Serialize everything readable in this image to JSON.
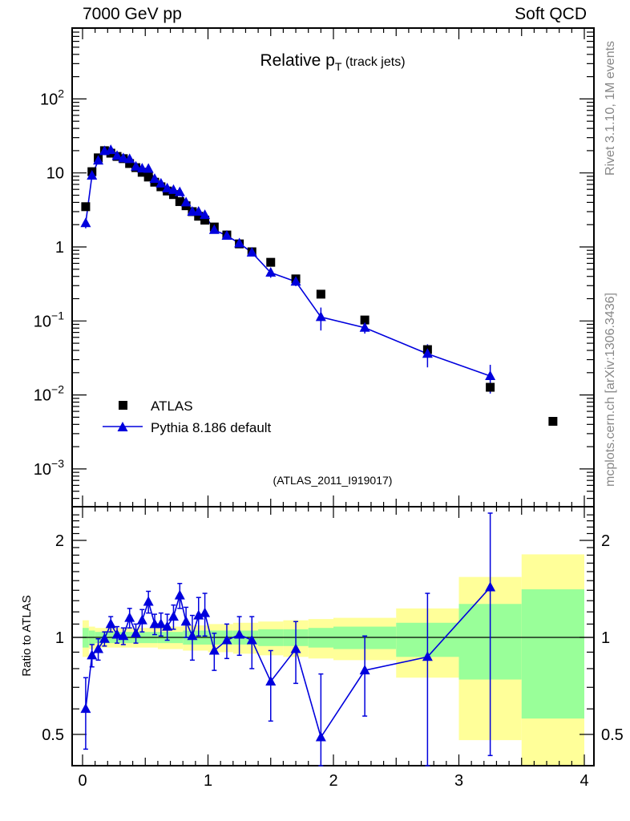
{
  "header": {
    "left": "7000 GeV pp",
    "right": "Soft QCD"
  },
  "side_text": {
    "top": "Rivet 3.1.10,  1M events",
    "bottom": "mcplots.cern.ch [arXiv:1306.3436]"
  },
  "analysis_label": "(ATLAS_2011_I919017)",
  "colors": {
    "data": "#000000",
    "mc": "#0000dd",
    "band_inner": "#99ff99",
    "band_outer": "#ffff99"
  },
  "chart_data": [
    {
      "type": "scatter",
      "title": "Relative p",
      "title_sub": "T",
      "title_suffix": " (track jets)",
      "xlabel": "",
      "ylabel": "",
      "yscale": "log",
      "xlim": [
        -0.083,
        4.077
      ],
      "ylim": [
        0.0003,
        900
      ],
      "yticks": [
        {
          "v": 0.001,
          "base": "10",
          "exp": "−3"
        },
        {
          "v": 0.01,
          "base": "10",
          "exp": "−2"
        },
        {
          "v": 0.1,
          "base": "10",
          "exp": "−1"
        },
        {
          "v": 1,
          "base": "1",
          "exp": ""
        },
        {
          "v": 10,
          "base": "10",
          "exp": ""
        },
        {
          "v": 100,
          "base": "10",
          "exp": "2"
        }
      ],
      "legend": {
        "placement": "bottom-left",
        "entries": [
          "ATLAS",
          "Pythia 8.186 default"
        ]
      },
      "x": [
        0.025,
        0.075,
        0.125,
        0.175,
        0.225,
        0.275,
        0.325,
        0.375,
        0.425,
        0.475,
        0.525,
        0.575,
        0.625,
        0.675,
        0.725,
        0.775,
        0.825,
        0.875,
        0.925,
        0.975,
        1.05,
        1.15,
        1.25,
        1.35,
        1.5,
        1.7,
        1.9,
        2.25,
        2.75,
        3.25,
        3.75
      ],
      "series": [
        {
          "name": "ATLAS",
          "values": [
            3.5,
            10.4,
            16,
            20,
            18.5,
            16.7,
            15.6,
            13.4,
            11.8,
            10.2,
            8.8,
            7.5,
            6.5,
            5.7,
            5.1,
            4.1,
            3.6,
            3.0,
            2.6,
            2.3,
            1.86,
            1.45,
            1.1,
            0.86,
            0.62,
            0.37,
            0.23,
            0.103,
            0.041,
            0.0127,
            0.0044
          ]
        },
        {
          "name": "Pythia 8.186 default",
          "values": [
            2.1,
            9.2,
            14.7,
            19.8,
            20.4,
            17.0,
            15.8,
            15.4,
            12.2,
            11.5,
            11.4,
            8.3,
            7.2,
            6.2,
            5.9,
            5.5,
            4.0,
            3.0,
            3.0,
            2.7,
            1.7,
            1.42,
            1.12,
            0.84,
            0.45,
            0.34,
            0.113,
            0.081,
            0.036,
            0.018,
            null
          ]
        }
      ]
    },
    {
      "type": "line",
      "ylabel": "Ratio to ATLAS",
      "yscale": "log",
      "ylim": [
        0.4,
        2.54
      ],
      "xticks": [
        "0",
        "1",
        "2",
        "3",
        "4"
      ],
      "yticks": [
        {
          "v": 0.5,
          "label": "0.5"
        },
        {
          "v": 1,
          "label": "1"
        },
        {
          "v": 2,
          "label": "2"
        }
      ],
      "x": [
        0.025,
        0.075,
        0.125,
        0.175,
        0.225,
        0.275,
        0.325,
        0.375,
        0.425,
        0.475,
        0.525,
        0.575,
        0.625,
        0.675,
        0.725,
        0.775,
        0.825,
        0.875,
        0.925,
        0.975,
        1.05,
        1.15,
        1.25,
        1.35,
        1.5,
        1.7,
        1.9,
        2.25,
        2.75,
        3.25
      ],
      "ratio": [
        0.6,
        0.88,
        0.92,
        0.99,
        1.1,
        1.02,
        1.01,
        1.15,
        1.03,
        1.13,
        1.29,
        1.1,
        1.1,
        1.08,
        1.16,
        1.35,
        1.12,
        1.01,
        1.17,
        1.19,
        0.91,
        0.98,
        1.02,
        0.98,
        0.73,
        0.92,
        0.49,
        0.79,
        0.87,
        1.43
      ],
      "ratio_err": [
        0.15,
        0.07,
        0.07,
        0.05,
        0.06,
        0.06,
        0.06,
        0.08,
        0.07,
        0.09,
        0.1,
        0.08,
        0.09,
        0.1,
        0.1,
        0.12,
        0.12,
        0.16,
        0.16,
        0.18,
        0.12,
        0.12,
        0.14,
        0.18,
        0.18,
        0.2,
        0.28,
        0.22,
        0.5,
        1.0
      ],
      "bands": {
        "edges": [
          0,
          0.05,
          0.1,
          0.2,
          0.4,
          0.6,
          0.8,
          1.0,
          1.2,
          1.4,
          1.6,
          1.8,
          2.0,
          2.5,
          3.0,
          3.5,
          4.0
        ],
        "inner_lo": [
          0.93,
          0.95,
          0.96,
          0.96,
          0.96,
          0.96,
          0.95,
          0.95,
          0.95,
          0.94,
          0.94,
          0.93,
          0.92,
          0.87,
          0.74,
          0.56
        ],
        "inner_hi": [
          1.07,
          1.05,
          1.04,
          1.04,
          1.04,
          1.04,
          1.05,
          1.05,
          1.05,
          1.06,
          1.06,
          1.07,
          1.08,
          1.11,
          1.27,
          1.41
        ],
        "outer_lo": [
          0.87,
          0.92,
          0.93,
          0.93,
          0.93,
          0.92,
          0.91,
          0.9,
          0.89,
          0.88,
          0.87,
          0.86,
          0.85,
          0.75,
          0.48,
          0.35
        ],
        "outer_hi": [
          1.13,
          1.08,
          1.07,
          1.07,
          1.07,
          1.08,
          1.09,
          1.1,
          1.11,
          1.12,
          1.13,
          1.14,
          1.15,
          1.23,
          1.54,
          1.81
        ]
      }
    }
  ]
}
